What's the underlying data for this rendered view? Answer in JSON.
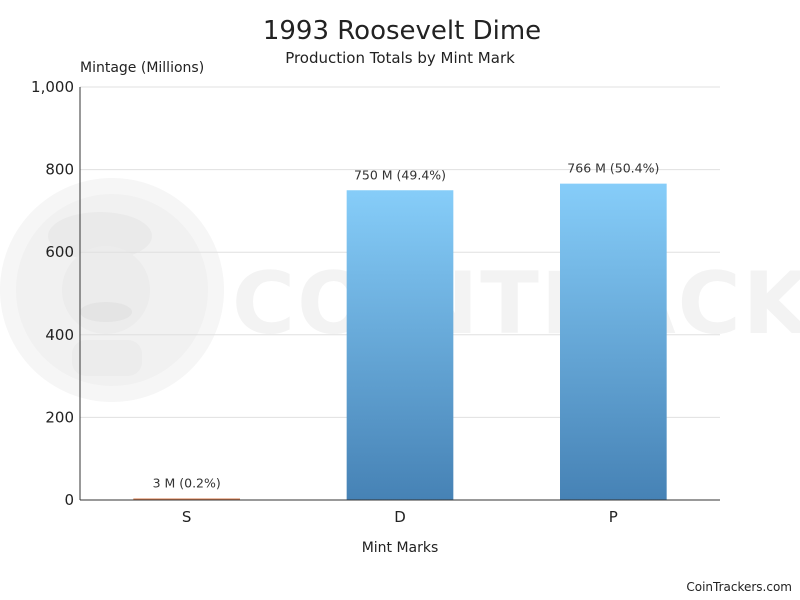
{
  "chart_data": {
    "type": "bar",
    "title": "1993 Roosevelt Dime",
    "subtitle": "Production Totals by Mint Mark",
    "xlabel": "Mint Marks",
    "ylabel": "Mintage (Millions)",
    "categories": [
      "S",
      "D",
      "P"
    ],
    "values": [
      3,
      750,
      766
    ],
    "data_labels": [
      "3 M (0.2%)",
      "750 M (49.4%)",
      "766 M (50.4%)"
    ],
    "ylim": [
      0,
      1000
    ],
    "yticks": [
      0,
      200,
      400,
      600,
      800,
      1000
    ],
    "ytick_labels": [
      "0",
      "200",
      "400",
      "600",
      "800",
      "1,000"
    ],
    "grid": true,
    "colors": {
      "bars": [
        "#d9794a",
        "#5ba7e3",
        "#5ba7e3"
      ],
      "bar_gradient_top": "#86cdf9",
      "bar_gradient_bottom": "#4682b5",
      "grid": "#e0e0e0",
      "axis": "#333333"
    }
  },
  "watermark": {
    "text": "COINTRACKERS",
    "logo_icon": "cointrackers-mascot-logo"
  },
  "credit": "CoinTrackers.com"
}
